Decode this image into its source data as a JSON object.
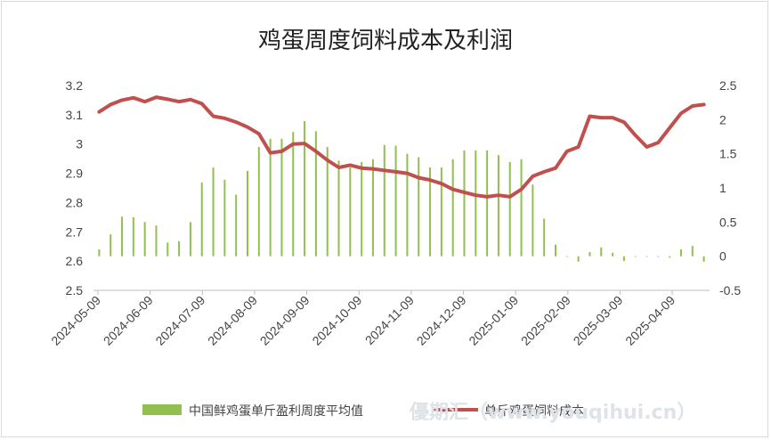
{
  "chart_data": {
    "type": "bar+line",
    "title": "鸡蛋周度饲料成本及利润",
    "x_ticks": [
      "2024-05-09",
      "2024-06-09",
      "2024-07-09",
      "2024-08-09",
      "2024-09-09",
      "2024-10-09",
      "2024-11-09",
      "2024-12-09",
      "2025-01-09",
      "2025-02-09",
      "2025-03-09",
      "2025-04-09"
    ],
    "left_axis": {
      "ylim": [
        2.5,
        3.2
      ],
      "ticks": [
        "2.5",
        "2.6",
        "2.7",
        "2.8",
        "2.9",
        "3",
        "3.1",
        "3.2"
      ]
    },
    "right_axis": {
      "ylim": [
        -0.5,
        2.5
      ],
      "ticks": [
        "-0.5",
        "0",
        "0.5",
        "1",
        "1.5",
        "2",
        "2.5"
      ]
    },
    "series": [
      {
        "name": "中国鲜鸡蛋单斤盈利周度平均值",
        "type": "bar",
        "axis": "right",
        "color": "#92c050",
        "values": [
          0.1,
          0.32,
          0.58,
          0.57,
          0.5,
          0.45,
          0.2,
          0.22,
          0.5,
          1.08,
          1.3,
          1.12,
          0.9,
          1.25,
          1.6,
          1.72,
          1.72,
          1.82,
          1.98,
          1.83,
          1.6,
          1.4,
          1.3,
          1.38,
          1.42,
          1.63,
          1.62,
          1.5,
          1.45,
          1.3,
          1.3,
          1.42,
          1.55,
          1.55,
          1.55,
          1.48,
          1.38,
          1.42,
          1.05,
          0.55,
          0.17,
          0.0,
          -0.08,
          0.06,
          0.13,
          0.05,
          -0.07,
          0.0,
          0.0,
          0.0,
          -0.02,
          0.1,
          0.15,
          -0.08
        ]
      },
      {
        "name": "单斤鸡蛋饲料成本",
        "type": "line",
        "axis": "left",
        "color": "#c0504d",
        "values": [
          3.11,
          3.135,
          3.15,
          3.158,
          3.145,
          3.16,
          3.153,
          3.145,
          3.152,
          3.138,
          3.095,
          3.088,
          3.075,
          3.058,
          3.035,
          2.97,
          2.975,
          3.0,
          3.002,
          2.975,
          2.945,
          2.92,
          2.928,
          2.918,
          2.915,
          2.91,
          2.905,
          2.9,
          2.885,
          2.877,
          2.865,
          2.845,
          2.835,
          2.825,
          2.82,
          2.825,
          2.82,
          2.845,
          2.89,
          2.905,
          2.918,
          2.975,
          2.99,
          3.095,
          3.09,
          3.09,
          3.075,
          3.03,
          2.99,
          3.005,
          3.055,
          3.105,
          3.13,
          3.135
        ]
      }
    ],
    "legend_position": "bottom"
  },
  "watermark": "優期汇（www.youqihui.cn）"
}
